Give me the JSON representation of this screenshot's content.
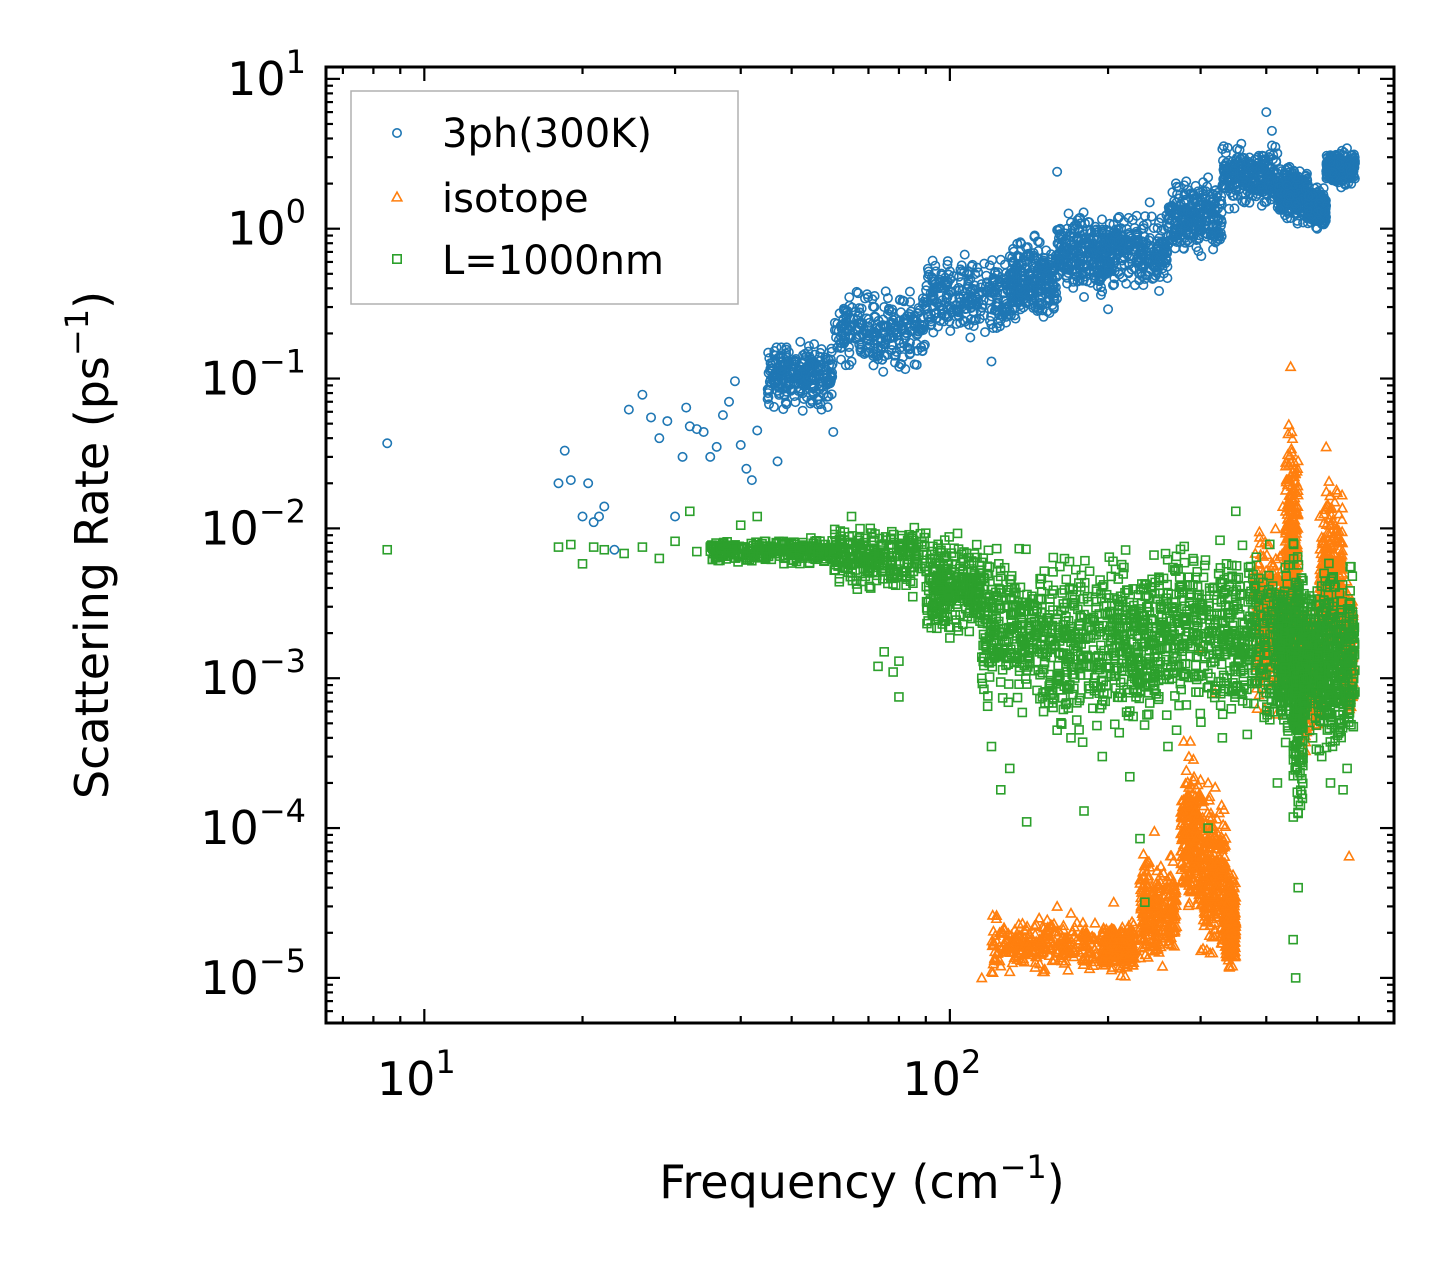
{
  "chart_data": {
    "type": "scatter",
    "title": "",
    "xlabel": "Frequency (cm",
    "xlabel_sup": "−1",
    "xlabel_end": ")",
    "ylabel": "Scattering Rate (ps",
    "ylabel_sup": "−1",
    "ylabel_end": ")",
    "x_scale": "log",
    "y_scale": "log",
    "xlim": [
      6.5,
      700
    ],
    "ylim": [
      5e-06,
      12
    ],
    "legend_position": "upper-left",
    "x_ticks": [
      {
        "value": 10,
        "base": "10",
        "exp": "1"
      },
      {
        "value": 100,
        "base": "10",
        "exp": "2"
      }
    ],
    "y_ticks": [
      {
        "value": 10,
        "base": "10",
        "exp": "1"
      },
      {
        "value": 1,
        "base": "10",
        "exp": "0"
      },
      {
        "value": 0.1,
        "base": "10",
        "exp": "−1"
      },
      {
        "value": 0.01,
        "base": "10",
        "exp": "−2"
      },
      {
        "value": 0.001,
        "base": "10",
        "exp": "−3"
      },
      {
        "value": 0.0001,
        "base": "10",
        "exp": "−4"
      },
      {
        "value": 1e-05,
        "base": "10",
        "exp": "−5"
      }
    ],
    "series": [
      {
        "name": "3ph(300K)",
        "marker": "circle",
        "color": "#1f77b4",
        "points": [
          [
            8.5,
            0.037
          ],
          [
            18,
            0.02
          ],
          [
            18.5,
            0.033
          ],
          [
            19,
            0.021
          ],
          [
            20,
            0.012
          ],
          [
            20.5,
            0.02
          ],
          [
            21,
            0.011
          ],
          [
            21.5,
            0.012
          ],
          [
            22,
            0.014
          ],
          [
            23,
            0.0072
          ],
          [
            24.5,
            0.062
          ],
          [
            26,
            0.078
          ],
          [
            27,
            0.055
          ],
          [
            28,
            0.04
          ],
          [
            29,
            0.052
          ],
          [
            30,
            0.012
          ],
          [
            31,
            0.03
          ],
          [
            31.5,
            0.064
          ],
          [
            32,
            0.048
          ],
          [
            33,
            0.046
          ],
          [
            34,
            0.044
          ],
          [
            35,
            0.03
          ],
          [
            36,
            0.035
          ],
          [
            37,
            0.057
          ],
          [
            38,
            0.07
          ],
          [
            39,
            0.096
          ],
          [
            40,
            0.036
          ],
          [
            41,
            0.025
          ],
          [
            42,
            0.021
          ],
          [
            43,
            0.045
          ],
          [
            45,
            0.073
          ],
          [
            47,
            0.028
          ],
          [
            48,
            0.097
          ],
          [
            50,
            0.13
          ],
          [
            52,
            0.12
          ],
          [
            55,
            0.078
          ],
          [
            57,
            0.062
          ],
          [
            60,
            0.044
          ],
          [
            62,
            0.16
          ],
          [
            65,
            0.13
          ],
          [
            70,
            0.15
          ],
          [
            72,
            0.2
          ],
          [
            75,
            0.3
          ],
          [
            80,
            0.18
          ],
          [
            85,
            0.25
          ],
          [
            90,
            0.34
          ],
          [
            95,
            0.4
          ],
          [
            100,
            0.52
          ],
          [
            105,
            0.44
          ],
          [
            110,
            0.56
          ],
          [
            115,
            0.38
          ],
          [
            120,
            0.13
          ],
          [
            125,
            0.62
          ],
          [
            130,
            0.5
          ],
          [
            140,
            0.32
          ],
          [
            150,
            0.58
          ],
          [
            160,
            2.4
          ],
          [
            170,
            1.1
          ],
          [
            180,
            0.35
          ],
          [
            200,
            0.29
          ],
          [
            210,
            1.2
          ],
          [
            225,
            0.42
          ],
          [
            240,
            1.5
          ],
          [
            250,
            1.1
          ],
          [
            270,
            1.0
          ],
          [
            290,
            1.7
          ],
          [
            310,
            2.2
          ],
          [
            330,
            3.4
          ],
          [
            350,
            2.0
          ],
          [
            370,
            2.8
          ],
          [
            400,
            6.0
          ],
          [
            410,
            4.5
          ],
          [
            440,
            2.5
          ],
          [
            470,
            1.1
          ],
          [
            500,
            1.0
          ],
          [
            530,
            2.8
          ],
          [
            560,
            3.1
          ],
          [
            585,
            2.4
          ]
        ],
        "bands": [
          {
            "x": [
              45,
              60
            ],
            "y_lo": 0.055,
            "y_hi": 0.2
          },
          {
            "x": [
              60,
              90
            ],
            "y_lo": 0.1,
            "y_hi": 0.45
          },
          {
            "x": [
              90,
              130
            ],
            "y_lo": 0.15,
            "y_hi": 0.75
          },
          {
            "x": [
              130,
              160
            ],
            "y_lo": 0.2,
            "y_hi": 1.0
          },
          {
            "x": [
              160,
              200
            ],
            "y_lo": 0.3,
            "y_hi": 1.6
          },
          {
            "x": [
              200,
              260
            ],
            "y_lo": 0.35,
            "y_hi": 1.4
          },
          {
            "x": [
              260,
              330
            ],
            "y_lo": 0.6,
            "y_hi": 2.5
          },
          {
            "x": [
              330,
              420
            ],
            "y_lo": 1.2,
            "y_hi": 4.0
          },
          {
            "x": [
              420,
              480
            ],
            "y_lo": 1.0,
            "y_hi": 3.0
          },
          {
            "x": [
              480,
              520
            ],
            "y_lo": 0.95,
            "y_hi": 2.0
          },
          {
            "x": [
              520,
              590
            ],
            "y_lo": 1.8,
            "y_hi": 3.6
          }
        ]
      },
      {
        "name": "isotope",
        "marker": "triangle",
        "color": "#ff7f0e",
        "points": [
          [
            115,
            1e-05
          ],
          [
            120,
            1.1e-05
          ],
          [
            125,
            1.2e-05
          ],
          [
            130,
            1.1e-05
          ],
          [
            135,
            1.4e-05
          ],
          [
            140,
            1.6e-05
          ],
          [
            150,
            2.2e-05
          ],
          [
            160,
            3e-05
          ],
          [
            170,
            2.7e-05
          ],
          [
            180,
            1.9e-05
          ],
          [
            195,
            2e-05
          ],
          [
            205,
            3.2e-05
          ],
          [
            215,
            2e-05
          ],
          [
            230,
            4.5e-05
          ],
          [
            245,
            9.5e-05
          ],
          [
            255,
            5e-05
          ],
          [
            265,
            2.5e-05
          ],
          [
            285,
            0.0003
          ],
          [
            300,
            0.0016
          ],
          [
            310,
            0.0002
          ],
          [
            320,
            0.0008
          ],
          [
            330,
            1.8e-05
          ],
          [
            340,
            5e-05
          ],
          [
            345,
            1.2e-05
          ],
          [
            395,
            0.0065
          ],
          [
            410,
            0.003
          ],
          [
            430,
            0.014
          ],
          [
            445,
            0.12
          ],
          [
            460,
            0.002
          ],
          [
            480,
            0.001
          ],
          [
            500,
            0.0006
          ],
          [
            520,
            0.035
          ],
          [
            540,
            0.015
          ],
          [
            560,
            0.003
          ],
          [
            575,
            6.5e-05
          ]
        ],
        "bands": [
          {
            "x": [
              120,
              190
            ],
            "y_lo": 1e-05,
            "y_hi": 2.8e-05
          },
          {
            "x": [
              195,
              225
            ],
            "y_lo": 1e-05,
            "y_hi": 2.5e-05
          },
          {
            "x": [
              230,
              270
            ],
            "y_lo": 1e-05,
            "y_hi": 8e-05
          },
          {
            "x": [
              275,
              300
            ],
            "y_lo": 2e-05,
            "y_hi": 0.0004
          },
          {
            "x": [
              300,
              335
            ],
            "y_lo": 1e-05,
            "y_hi": 0.00025
          },
          {
            "x": [
              335,
              350
            ],
            "y_lo": 1e-05,
            "y_hi": 6e-05
          },
          {
            "x": [
              380,
              430
            ],
            "y_lo": 0.0004,
            "y_hi": 0.012
          },
          {
            "x": [
              435,
              460
            ],
            "y_lo": 0.0006,
            "y_hi": 0.08
          },
          {
            "x": [
              460,
              505
            ],
            "y_lo": 0.0003,
            "y_hi": 0.004
          },
          {
            "x": [
              505,
              560
            ],
            "y_lo": 0.001,
            "y_hi": 0.025
          },
          {
            "x": [
              560,
              585
            ],
            "y_lo": 0.0005,
            "y_hi": 0.005
          }
        ]
      },
      {
        "name": "L=1000nm",
        "marker": "square",
        "color": "#2ca02c",
        "points": [
          [
            8.5,
            0.0072
          ],
          [
            18,
            0.0075
          ],
          [
            19,
            0.0078
          ],
          [
            20,
            0.0058
          ],
          [
            21,
            0.0075
          ],
          [
            22,
            0.0072
          ],
          [
            24,
            0.0068
          ],
          [
            26,
            0.0075
          ],
          [
            28,
            0.0063
          ],
          [
            30,
            0.0082
          ],
          [
            32,
            0.013
          ],
          [
            33,
            0.007
          ],
          [
            35,
            0.0075
          ],
          [
            38,
            0.0068
          ],
          [
            40,
            0.0105
          ],
          [
            43,
            0.012
          ],
          [
            46,
            0.0075
          ],
          [
            50,
            0.0068
          ],
          [
            55,
            0.0065
          ],
          [
            60,
            0.0062
          ],
          [
            65,
            0.012
          ],
          [
            70,
            0.0058
          ],
          [
            73,
            0.0012
          ],
          [
            75,
            0.0015
          ],
          [
            78,
            0.0011
          ],
          [
            80,
            0.0013
          ],
          [
            80,
            0.00075
          ],
          [
            85,
            0.0035
          ],
          [
            95,
            0.0025
          ],
          [
            100,
            0.003
          ],
          [
            110,
            0.0025
          ],
          [
            115,
            0.001
          ],
          [
            118,
            0.00065
          ],
          [
            120,
            0.00035
          ],
          [
            125,
            0.00018
          ],
          [
            130,
            0.00025
          ],
          [
            140,
            0.00011
          ],
          [
            150,
            0.00075
          ],
          [
            160,
            0.00045
          ],
          [
            170,
            0.0004
          ],
          [
            180,
            0.00013
          ],
          [
            195,
            0.0003
          ],
          [
            210,
            0.0018
          ],
          [
            220,
            0.00022
          ],
          [
            230,
            8.5e-05
          ],
          [
            235,
            3.2e-05
          ],
          [
            250,
            0.0045
          ],
          [
            260,
            0.00035
          ],
          [
            270,
            0.00045
          ],
          [
            290,
            0.002
          ],
          [
            310,
            0.0001
          ],
          [
            330,
            0.0004
          ],
          [
            350,
            0.013
          ],
          [
            370,
            0.0055
          ],
          [
            400,
            0.0008
          ],
          [
            420,
            0.0002
          ],
          [
            440,
            0.0025
          ],
          [
            450,
            1.8e-05
          ],
          [
            455,
            1e-05
          ],
          [
            460,
            4e-05
          ],
          [
            470,
            0.0012
          ],
          [
            490,
            0.0004
          ],
          [
            510,
            0.0003
          ],
          [
            530,
            0.0002
          ],
          [
            560,
            0.00018
          ],
          [
            570,
            0.00025
          ],
          [
            585,
            0.0015
          ]
        ],
        "bands": [
          {
            "x": [
              35,
              60
            ],
            "y_lo": 0.0055,
            "y_hi": 0.009
          },
          {
            "x": [
              60,
              90
            ],
            "y_lo": 0.0035,
            "y_hi": 0.012
          },
          {
            "x": [
              90,
              115
            ],
            "y_lo": 0.0015,
            "y_hi": 0.011
          },
          {
            "x": [
              115,
              150
            ],
            "y_lo": 0.0005,
            "y_hi": 0.01
          },
          {
            "x": [
              150,
              200
            ],
            "y_lo": 0.0003,
            "y_hi": 0.01
          },
          {
            "x": [
              200,
              250
            ],
            "y_lo": 0.0003,
            "y_hi": 0.009
          },
          {
            "x": [
              250,
              330
            ],
            "y_lo": 0.0004,
            "y_hi": 0.012
          },
          {
            "x": [
              330,
              420
            ],
            "y_lo": 0.0003,
            "y_hi": 0.011
          },
          {
            "x": [
              420,
              450
            ],
            "y_lo": 0.0003,
            "y_hi": 0.007
          },
          {
            "x": [
              450,
              470
            ],
            "y_lo": 8e-05,
            "y_hi": 0.011
          },
          {
            "x": [
              470,
              520
            ],
            "y_lo": 0.0003,
            "y_hi": 0.006
          },
          {
            "x": [
              520,
              590
            ],
            "y_lo": 0.0002,
            "y_hi": 0.008
          }
        ]
      }
    ]
  }
}
